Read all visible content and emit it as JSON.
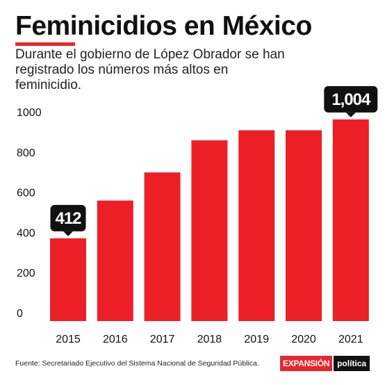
{
  "header": {
    "title": "Feminicidios en México",
    "subtitle": "Durante el gobierno de López Obrador se han registrado los números más altos en feminicidio."
  },
  "colors": {
    "bar": "#ec1f27",
    "accent": "#e8262b",
    "callout": "#111111"
  },
  "chart_data": {
    "type": "bar",
    "categories": [
      "2015",
      "2016",
      "2017",
      "2018",
      "2019",
      "2020",
      "2021"
    ],
    "values": [
      412,
      600,
      740,
      900,
      950,
      950,
      1004
    ],
    "ylim": [
      0,
      1000
    ],
    "yticks": [
      0,
      200,
      400,
      600,
      800,
      1000
    ],
    "grid": false,
    "annotations": [
      {
        "category": "2015",
        "text": "412"
      },
      {
        "category": "2021",
        "text": "1,004"
      }
    ]
  },
  "footer": {
    "source": "Fuente: Secretariado Ejecutivo del Sistema Nacional de Seguridad Pública.",
    "brand_main": "Expansión",
    "brand_sub": "política"
  }
}
